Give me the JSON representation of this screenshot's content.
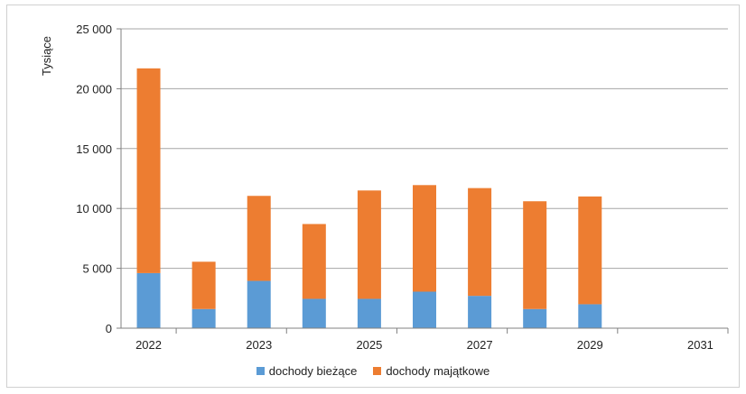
{
  "chart_data": {
    "type": "bar",
    "stacked": true,
    "ylabel": "Tysiące",
    "ylim": [
      0,
      25000
    ],
    "yticks": [
      0,
      5000,
      10000,
      15000,
      20000,
      25000
    ],
    "ytick_labels": [
      "0",
      "5 000",
      "10 000",
      "15 000",
      "20 000",
      "25 000"
    ],
    "categories": [
      "2022",
      "",
      "2023",
      "",
      "2025",
      "",
      "2027",
      "",
      "2029",
      "",
      "2031"
    ],
    "series": [
      {
        "name": "dochody bieżące",
        "color": "#5b9bd5",
        "values": [
          4600,
          1600,
          3950,
          2450,
          2450,
          3050,
          2700,
          1600,
          2000,
          0,
          0
        ]
      },
      {
        "name": "dochody majątkowe",
        "color": "#ed7d31",
        "values": [
          17100,
          3950,
          7100,
          6250,
          9050,
          8900,
          9000,
          9000,
          9000,
          0,
          0
        ]
      }
    ],
    "grid": true,
    "legend": "bottom"
  }
}
